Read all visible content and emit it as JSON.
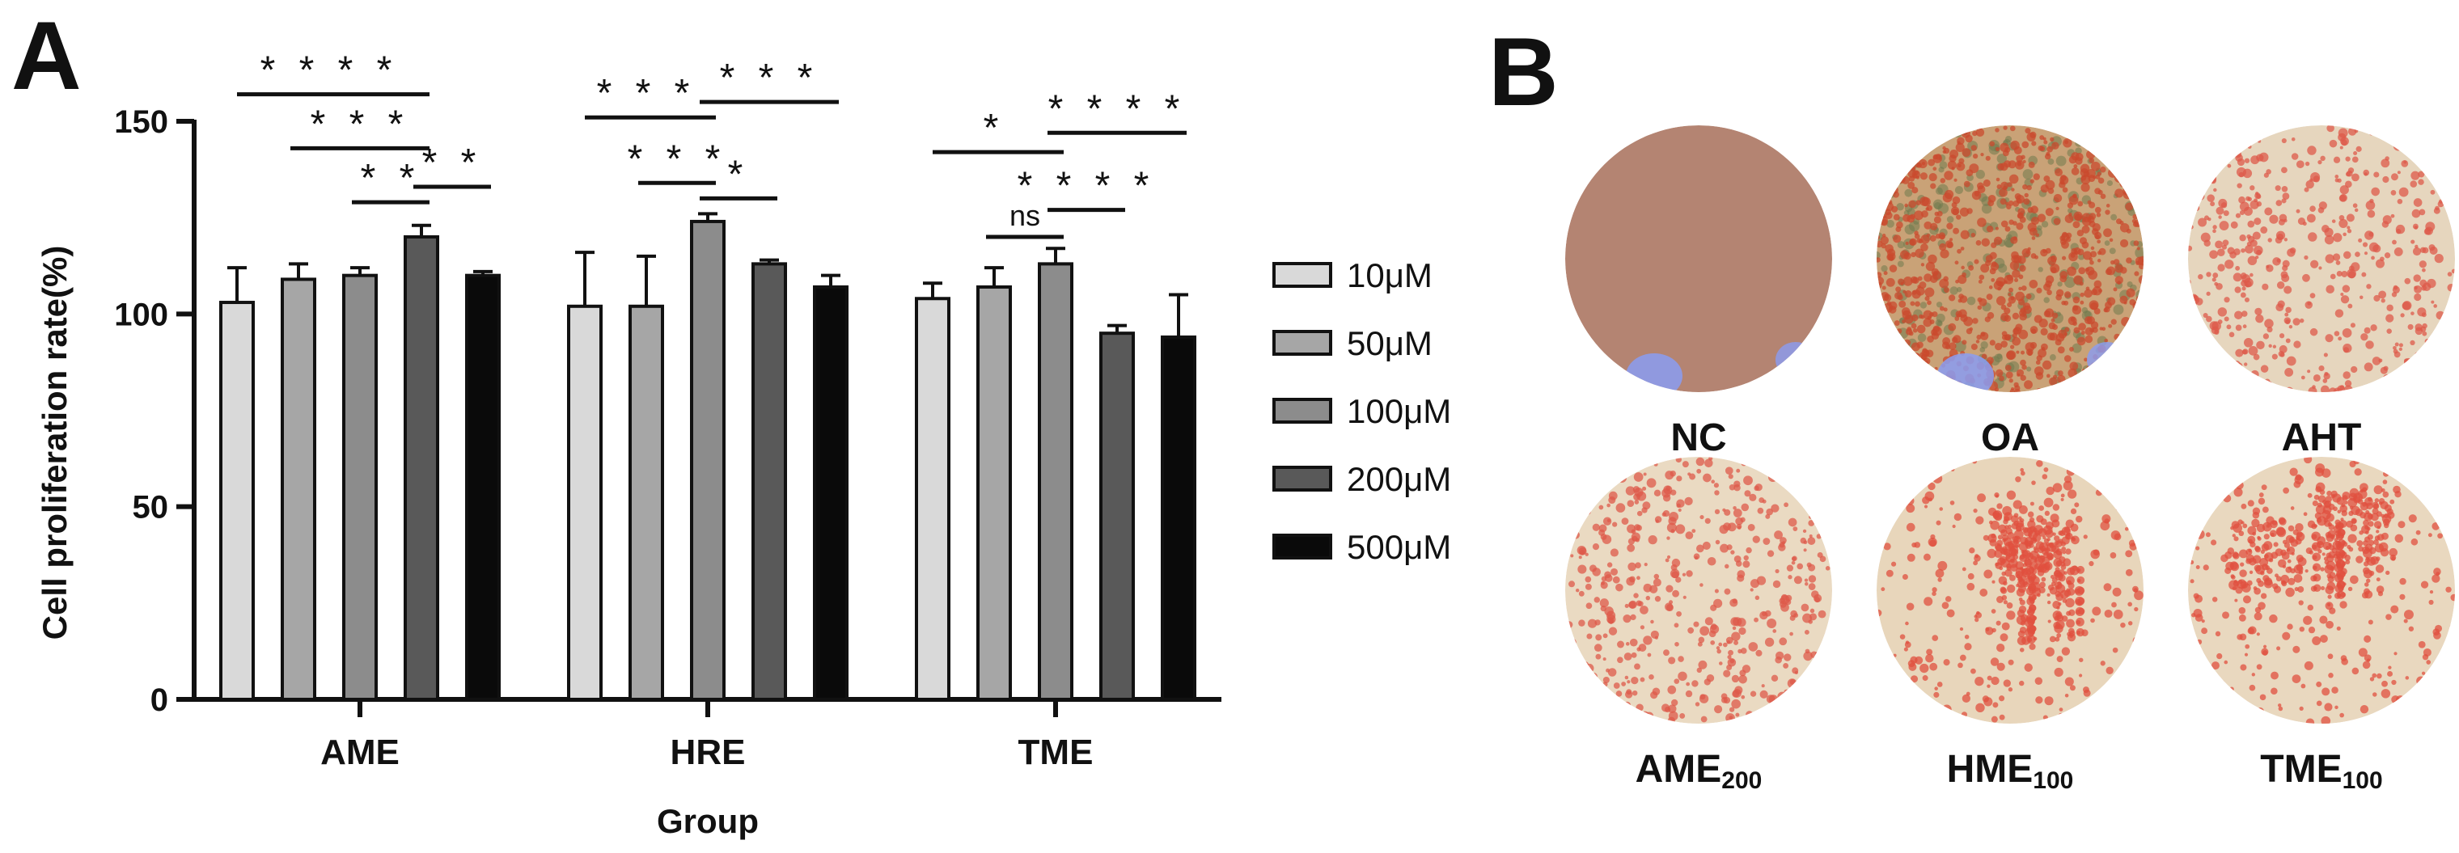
{
  "panels": {
    "a_label": "A",
    "b_label": "B"
  },
  "chart_data": {
    "type": "bar",
    "ylabel": "Cell proliferation rate(%)",
    "xlabel": "Group",
    "ylim": [
      0,
      150
    ],
    "yticks": [
      "0",
      "50",
      "100",
      "150"
    ],
    "categories": [
      "AME",
      "HRE",
      "TME"
    ],
    "series": [
      {
        "name": "10μM",
        "color": "#d9d9d9",
        "values": [
          103,
          102,
          104
        ],
        "errors": [
          9,
          14,
          4
        ]
      },
      {
        "name": "50μM",
        "color": "#a6a6a6",
        "values": [
          109,
          102,
          107
        ],
        "errors": [
          4,
          13,
          5
        ]
      },
      {
        "name": "100μM",
        "color": "#8c8c8c",
        "values": [
          110,
          124,
          113
        ],
        "errors": [
          2,
          2,
          4
        ]
      },
      {
        "name": "200μM",
        "color": "#595959",
        "values": [
          120,
          113,
          95
        ],
        "errors": [
          3,
          1,
          2
        ]
      },
      {
        "name": "500μM",
        "color": "#0a0a0a",
        "values": [
          110,
          107,
          94
        ],
        "errors": [
          1,
          3,
          11
        ]
      }
    ],
    "legend_position": "right",
    "significance": [
      {
        "group": 0,
        "from": 0,
        "to": 3,
        "y": 157,
        "label": "****"
      },
      {
        "group": 0,
        "from": 1,
        "to": 3,
        "y": 143,
        "label": "***"
      },
      {
        "group": 0,
        "from": 2,
        "to": 3,
        "y": 129,
        "label": "**"
      },
      {
        "group": 0,
        "from": 3,
        "to": 4,
        "y": 133,
        "label": "**"
      },
      {
        "group": 1,
        "from": 0,
        "to": 2,
        "y": 151,
        "label": "***"
      },
      {
        "group": 1,
        "from": 2,
        "to": 4,
        "y": 155,
        "label": "***"
      },
      {
        "group": 1,
        "from": 1,
        "to": 2,
        "y": 134,
        "label": "***"
      },
      {
        "group": 1,
        "from": 2,
        "to": 3,
        "y": 130,
        "label": "*"
      },
      {
        "group": 2,
        "from": 0,
        "to": 2,
        "y": 142,
        "label": "*"
      },
      {
        "group": 2,
        "from": 2,
        "to": 4,
        "y": 147,
        "label": "****"
      },
      {
        "group": 2,
        "from": 2,
        "to": 3,
        "y": 127,
        "label": "****"
      },
      {
        "group": 2,
        "from": 1,
        "to": 2,
        "y": 120,
        "label": "ns"
      }
    ]
  },
  "wells": [
    {
      "label": "NC",
      "sub": "",
      "color": "#b48472",
      "spots": "none"
    },
    {
      "label": "OA",
      "sub": "",
      "color": "#c9a277",
      "spots": "dense"
    },
    {
      "label": "AHT",
      "sub": "",
      "color": "#e6d6be",
      "spots": "medium"
    },
    {
      "label": "AME",
      "sub": "200",
      "color": "#eadac2",
      "spots": "medium"
    },
    {
      "label": "HME",
      "sub": "100",
      "color": "#e8d6bb",
      "spots": "clumps"
    },
    {
      "label": "TME",
      "sub": "100",
      "color": "#e9d8bf",
      "spots": "clumps"
    }
  ]
}
